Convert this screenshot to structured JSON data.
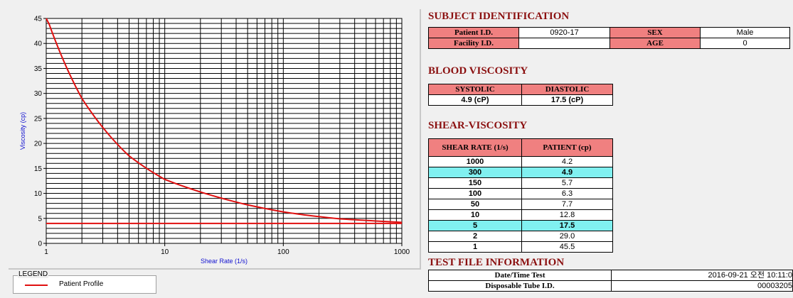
{
  "chart_data": {
    "type": "line",
    "xscale": "log",
    "xlim": [
      1,
      1000
    ],
    "ylim": [
      0,
      45
    ],
    "xlabel": "Shear Rate (1/s)",
    "ylabel": "Viscosity (cp)",
    "x_ticks": [
      1,
      10,
      100,
      1000
    ],
    "y_ticks": [
      0,
      5,
      10,
      15,
      20,
      25,
      30,
      35,
      40,
      45
    ],
    "grid": true,
    "series": [
      {
        "name": "Patient Profile",
        "color": "#e01010",
        "x": [
          1,
          2,
          5,
          10,
          50,
          100,
          150,
          300,
          1000
        ],
        "y": [
          45.5,
          29.0,
          17.5,
          12.8,
          7.7,
          6.3,
          5.7,
          4.9,
          4.2
        ]
      }
    ],
    "reference_line": {
      "y": 4.0,
      "color": "#e01010"
    }
  },
  "legend": {
    "caption": "LEGEND",
    "label": "Patient Profile"
  },
  "subject": {
    "title": "SUBJECT IDENTIFICATION",
    "patient_id_label": "Patient I.D.",
    "patient_id": "0920-17",
    "facility_id_label": "Facility I.D.",
    "facility_id": "",
    "sex_label": "SEX",
    "sex": "Male",
    "age_label": "AGE",
    "age": "0"
  },
  "blood": {
    "title": "BLOOD VISCOSITY",
    "systolic_label": "SYSTOLIC",
    "diastolic_label": "DIASTOLIC",
    "systolic": "4.9 (cP)",
    "diastolic": "17.5 (cP)"
  },
  "shear": {
    "title": "SHEAR-VISCOSITY",
    "col1": "SHEAR RATE (1/s)",
    "col2": "PATIENT (cp)",
    "rows": [
      {
        "rate": "1000",
        "value": "4.2"
      },
      {
        "rate": "300",
        "value": "4.9"
      },
      {
        "rate": "150",
        "value": "5.7"
      },
      {
        "rate": "100",
        "value": "6.3"
      },
      {
        "rate": "50",
        "value": "7.7"
      },
      {
        "rate": "10",
        "value": "12.8"
      },
      {
        "rate": "5",
        "value": "17.5"
      },
      {
        "rate": "2",
        "value": "29.0"
      },
      {
        "rate": "1",
        "value": "45.5"
      }
    ]
  },
  "testfile": {
    "title": "TEST FILE INFORMATION",
    "datetime_label": "Date/Time Test",
    "datetime": "2016-09-21  오전 10:11:0",
    "tube_label": "Disposable Tube I.D.",
    "tube": "00003205"
  },
  "colors": {
    "header_bg": "#f08080",
    "highlight_bg": "#80f0f0",
    "title_color": "#8b1010",
    "curve": "#e01010"
  }
}
